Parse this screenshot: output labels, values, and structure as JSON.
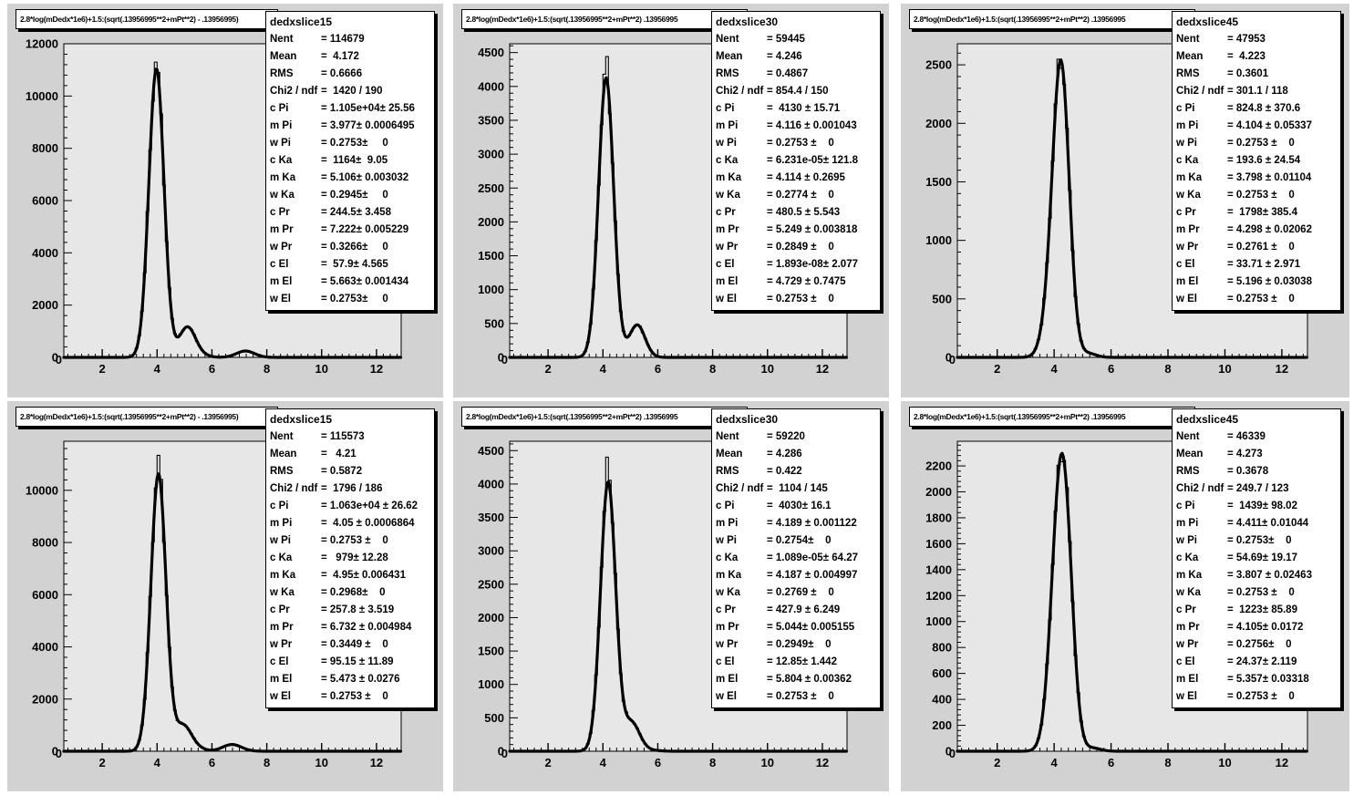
{
  "canvas": {
    "background": "#ffffff",
    "pad_background": "#d2d2d2",
    "frame_background": "#e7e7e7",
    "line_color": "#000000",
    "box_background": "#ffffff"
  },
  "chart_data": [
    {
      "type": "histogram",
      "pad": "top-left",
      "title": "2.8*log(mDedx*1e6)+1.5:(sqrt(.13956995**2+mPt**2) - .13956995)",
      "hist_name": "dedxslice15",
      "stats": [
        {
          "l": "Nent",
          "v": "= 114679"
        },
        {
          "l": "Mean",
          "v": "=  4.172"
        },
        {
          "l": "RMS",
          "v": "= 0.6666"
        },
        {
          "l": "Chi2 / ndf",
          "v": "=  1420 / 190"
        },
        {
          "l": "c Pi",
          "v": "= 1.105e+04± 25.56"
        },
        {
          "l": "m Pi",
          "v": "= 3.977± 0.0006495"
        },
        {
          "l": "w Pi",
          "v": "= 0.2753±     0"
        },
        {
          "l": "c Ka",
          "v": "=  1164±  9.05"
        },
        {
          "l": "m Ka",
          "v": "= 5.106± 0.003032"
        },
        {
          "l": "w Ka",
          "v": "= 0.2945±     0"
        },
        {
          "l": "c Pr",
          "v": "= 244.5± 3.458"
        },
        {
          "l": "m Pr",
          "v": "= 7.222± 0.005229"
        },
        {
          "l": "w Pr",
          "v": "= 0.3266±     0"
        },
        {
          "l": "c El",
          "v": "=  57.9± 4.565"
        },
        {
          "l": "m El",
          "v": "= 5.663± 0.001434"
        },
        {
          "l": "w El",
          "v": "= 0.2753±     0"
        }
      ],
      "axes": {
        "xlim": [
          0.6,
          12.9
        ],
        "xlabels": [
          2,
          4,
          6,
          8,
          10,
          12
        ],
        "xminor_step": 0.25,
        "ymax": 12000,
        "ymajor": 2000,
        "yminor": 400,
        "ylabel_max": 12000
      },
      "fit": [
        {
          "name": "Pi",
          "c": 11050,
          "m": 3.977,
          "w": 0.2753
        },
        {
          "name": "Ka",
          "c": 1164,
          "m": 5.106,
          "w": 0.2945
        },
        {
          "name": "Pr",
          "c": 244.5,
          "m": 7.222,
          "w": 0.3266
        },
        {
          "name": "El",
          "c": 57.9,
          "m": 5.663,
          "w": 0.2753
        }
      ],
      "hist_peak_scale": 1.035
    },
    {
      "type": "histogram",
      "pad": "top-middle",
      "title": "2.8*log(mDedx*1e6)+1.5:(sqrt(.13956995**2+mPt**2)  .13956995",
      "hist_name": "dedxslice30",
      "stats": [
        {
          "l": "Nent",
          "v": "= 59445"
        },
        {
          "l": "Mean",
          "v": "= 4.246"
        },
        {
          "l": "RMS",
          "v": "= 0.4867"
        },
        {
          "l": "Chi2 / ndf",
          "v": "= 854.4 / 150"
        },
        {
          "l": "c Pi",
          "v": "=  4130 ± 15.71"
        },
        {
          "l": "m Pi",
          "v": "= 4.116 ± 0.001043"
        },
        {
          "l": "w Pi",
          "v": "= 0.2753 ±    0"
        },
        {
          "l": "c Ka",
          "v": "= 6.231e-05± 121.8"
        },
        {
          "l": "m Ka",
          "v": "= 4.114 ± 0.2695"
        },
        {
          "l": "w Ka",
          "v": "= 0.2774 ±    0"
        },
        {
          "l": "c Pr",
          "v": "= 480.5 ± 5.543"
        },
        {
          "l": "m Pr",
          "v": "= 5.249 ± 0.003818"
        },
        {
          "l": "w Pr",
          "v": "= 0.2849 ±    0"
        },
        {
          "l": "c El",
          "v": "= 1.893e-08± 2.077"
        },
        {
          "l": "m El",
          "v": "= 4.729 ± 0.7475"
        },
        {
          "l": "w El",
          "v": "= 0.2753 ±    0"
        }
      ],
      "axes": {
        "xlim": [
          0.6,
          12.9
        ],
        "xlabels": [
          2,
          4,
          6,
          8,
          10,
          12
        ],
        "xminor_step": 0.25,
        "ymax": 4630,
        "ymajor": 500,
        "yminor": 100,
        "ylabel_max": 4500
      },
      "fit": [
        {
          "name": "Pi",
          "c": 4130,
          "m": 4.116,
          "w": 0.2753
        },
        {
          "name": "Ka",
          "c": 6.231e-05,
          "m": 4.114,
          "w": 0.2774
        },
        {
          "name": "Pr",
          "c": 480.5,
          "m": 5.249,
          "w": 0.2849
        },
        {
          "name": "El",
          "c": 2e-08,
          "m": 4.729,
          "w": 0.2753
        }
      ],
      "hist_peak_scale": 1.065
    },
    {
      "type": "histogram",
      "pad": "top-right",
      "title": "2.8*log(mDedx*1e6)+1.5:(sqrt(.13956995**2+mPt**2)  .13956995",
      "hist_name": "dedxslice45",
      "stats": [
        {
          "l": "Nent",
          "v": "= 47953"
        },
        {
          "l": "Mean",
          "v": "=  4.223"
        },
        {
          "l": "RMS",
          "v": "= 0.3601"
        },
        {
          "l": "Chi2 / ndf",
          "v": "= 301.1 / 118"
        },
        {
          "l": "c Pi",
          "v": "= 824.8 ± 370.6"
        },
        {
          "l": "m Pi",
          "v": "= 4.104 ± 0.05337"
        },
        {
          "l": "w Pi",
          "v": "= 0.2753 ±    0"
        },
        {
          "l": "c Ka",
          "v": "= 193.6 ± 24.54"
        },
        {
          "l": "m Ka",
          "v": "= 3.798 ± 0.01104"
        },
        {
          "l": "w Ka",
          "v": "= 0.2753 ±    0"
        },
        {
          "l": "c Pr",
          "v": "=  1798± 385.4"
        },
        {
          "l": "m Pr",
          "v": "= 4.298 ± 0.02062"
        },
        {
          "l": "w Pr",
          "v": "= 0.2761 ±    0"
        },
        {
          "l": "c El",
          "v": "= 33.71 ± 2.971"
        },
        {
          "l": "m El",
          "v": "= 5.196 ± 0.03038"
        },
        {
          "l": "w El",
          "v": "= 0.2753 ±    0"
        }
      ],
      "axes": {
        "xlim": [
          0.6,
          12.9
        ],
        "xlabels": [
          2,
          4,
          6,
          8,
          10,
          12
        ],
        "xminor_step": 0.25,
        "ymax": 2680,
        "ymajor": 500,
        "yminor": 100,
        "ylabel_max": 2500
      },
      "fit": [
        {
          "name": "Pi",
          "c": 824.8,
          "m": 4.104,
          "w": 0.2753
        },
        {
          "name": "Ka",
          "c": 193.6,
          "m": 3.798,
          "w": 0.2753
        },
        {
          "name": "Pr",
          "c": 1798,
          "m": 4.298,
          "w": 0.2761
        },
        {
          "name": "El",
          "c": 33.71,
          "m": 5.196,
          "w": 0.2753
        }
      ],
      "hist_peak_scale": 1.015
    },
    {
      "type": "histogram",
      "pad": "bottom-left",
      "title": "2.8*log(mDedx*1e6)+1.5:(sqrt(.13956995**2+mPt**2) - .13956995)",
      "hist_name": "dedxslice15",
      "stats": [
        {
          "l": "Nent",
          "v": "= 115573"
        },
        {
          "l": "Mean",
          "v": "=   4.21"
        },
        {
          "l": "RMS",
          "v": "= 0.5872"
        },
        {
          "l": "Chi2 / ndf",
          "v": "=  1796 / 186"
        },
        {
          "l": "c Pi",
          "v": "= 1.063e+04 ± 26.62"
        },
        {
          "l": "m Pi",
          "v": "=  4.05 ± 0.0006864"
        },
        {
          "l": "w Pi",
          "v": "= 0.2753 ±    0"
        },
        {
          "l": "c Ka",
          "v": "=   979± 12.28"
        },
        {
          "l": "m Ka",
          "v": "=  4.95± 0.006431"
        },
        {
          "l": "w Ka",
          "v": "= 0.2968±    0"
        },
        {
          "l": "c Pr",
          "v": "= 257.8 ± 3.519"
        },
        {
          "l": "m Pr",
          "v": "= 6.732 ± 0.004984"
        },
        {
          "l": "w Pr",
          "v": "= 0.3449 ±    0"
        },
        {
          "l": "c El",
          "v": "= 95.15 ± 11.89"
        },
        {
          "l": "m El",
          "v": "= 5.473 ± 0.0276"
        },
        {
          "l": "w El",
          "v": "= 0.2753 ±    0"
        }
      ],
      "axes": {
        "xlim": [
          0.6,
          12.9
        ],
        "xlabels": [
          2,
          4,
          6,
          8,
          10,
          12
        ],
        "xminor_step": 0.25,
        "ymax": 11880,
        "ymajor": 2000,
        "yminor": 400,
        "ylabel_max": 10000
      },
      "fit": [
        {
          "name": "Pi",
          "c": 10630,
          "m": 4.05,
          "w": 0.2753
        },
        {
          "name": "Ka",
          "c": 979,
          "m": 4.95,
          "w": 0.2968
        },
        {
          "name": "Pr",
          "c": 257.8,
          "m": 6.732,
          "w": 0.3449
        },
        {
          "name": "El",
          "c": 95.15,
          "m": 5.473,
          "w": 0.2753
        }
      ],
      "hist_peak_scale": 1.062
    },
    {
      "type": "histogram",
      "pad": "bottom-middle",
      "title": "2.8*log(mDedx*1e6)+1.5:(sqrt(.13956995**2+mPt**2)  .13956995",
      "hist_name": "dedxslice30",
      "stats": [
        {
          "l": "Nent",
          "v": "= 59220"
        },
        {
          "l": "Mean",
          "v": "= 4.286"
        },
        {
          "l": "RMS",
          "v": "= 0.422"
        },
        {
          "l": "Chi2 / ndf",
          "v": "=  1104 / 145"
        },
        {
          "l": "c Pi",
          "v": "=  4030± 16.1"
        },
        {
          "l": "m Pi",
          "v": "= 4.189 ± 0.001122"
        },
        {
          "l": "w Pi",
          "v": "= 0.2754±    0"
        },
        {
          "l": "c Ka",
          "v": "= 1.089e-05± 64.27"
        },
        {
          "l": "m Ka",
          "v": "= 4.187 ± 0.004997"
        },
        {
          "l": "w Ka",
          "v": "= 0.2769 ±    0"
        },
        {
          "l": "c Pr",
          "v": "= 427.9 ± 6.249"
        },
        {
          "l": "m Pr",
          "v": "= 5.044± 0.005155"
        },
        {
          "l": "w Pr",
          "v": "= 0.2949±    0"
        },
        {
          "l": "c El",
          "v": "= 12.85± 1.442"
        },
        {
          "l": "m El",
          "v": "= 5.804 ± 0.00362"
        },
        {
          "l": "w El",
          "v": "= 0.2753 ±    0"
        }
      ],
      "axes": {
        "xlim": [
          0.6,
          12.9
        ],
        "xlabels": [
          2,
          4,
          6,
          8,
          10,
          12
        ],
        "xminor_step": 0.25,
        "ymax": 4640,
        "ymajor": 500,
        "yminor": 100,
        "ylabel_max": 4500
      },
      "fit": [
        {
          "name": "Pi",
          "c": 4030,
          "m": 4.189,
          "w": 0.2754
        },
        {
          "name": "Ka",
          "c": 1.089e-05,
          "m": 4.187,
          "w": 0.2769
        },
        {
          "name": "Pr",
          "c": 427.9,
          "m": 5.044,
          "w": 0.2949
        },
        {
          "name": "El",
          "c": 12.85,
          "m": 5.804,
          "w": 0.2753
        }
      ],
      "hist_peak_scale": 1.09
    },
    {
      "type": "histogram",
      "pad": "bottom-right",
      "title": "2.8*log(mDedx*1e6)+1.5:(sqrt(.13956995**2+mPt**2)  .13956995",
      "hist_name": "dedxslice45",
      "stats": [
        {
          "l": "Nent",
          "v": "= 46339"
        },
        {
          "l": "Mean",
          "v": "= 4.273"
        },
        {
          "l": "RMS",
          "v": "= 0.3678"
        },
        {
          "l": "Chi2 / ndf",
          "v": "= 249.7 / 123"
        },
        {
          "l": "c Pi",
          "v": "=  1439± 98.02"
        },
        {
          "l": "m Pi",
          "v": "= 4.411± 0.01044"
        },
        {
          "l": "w Pi",
          "v": "= 0.2753±    0"
        },
        {
          "l": "c Ka",
          "v": "= 54.69± 19.17"
        },
        {
          "l": "m Ka",
          "v": "= 3.807 ± 0.02463"
        },
        {
          "l": "w Ka",
          "v": "= 0.2753 ±    0"
        },
        {
          "l": "c Pr",
          "v": "=  1223± 85.89"
        },
        {
          "l": "m Pr",
          "v": "= 4.105± 0.0172"
        },
        {
          "l": "w Pr",
          "v": "= 0.2756±    0"
        },
        {
          "l": "c El",
          "v": "= 24.37± 2.119"
        },
        {
          "l": "m El",
          "v": "= 5.357± 0.03318"
        },
        {
          "l": "w El",
          "v": "= 0.2753 ±    0"
        }
      ],
      "axes": {
        "xlim": [
          0.6,
          12.9
        ],
        "xlabels": [
          2,
          4,
          6,
          8,
          10,
          12
        ],
        "xminor_step": 0.25,
        "ymax": 2390,
        "ymajor": 200,
        "yminor": 40,
        "ylabel_max": 2200
      },
      "fit": [
        {
          "name": "Pi",
          "c": 1439,
          "m": 4.411,
          "w": 0.2753
        },
        {
          "name": "Ka",
          "c": 54.69,
          "m": 3.807,
          "w": 0.2753
        },
        {
          "name": "Pr",
          "c": 1223,
          "m": 4.105,
          "w": 0.2756
        },
        {
          "name": "El",
          "c": 24.37,
          "m": 5.357,
          "w": 0.2753
        }
      ],
      "hist_peak_scale": 1.012
    }
  ]
}
